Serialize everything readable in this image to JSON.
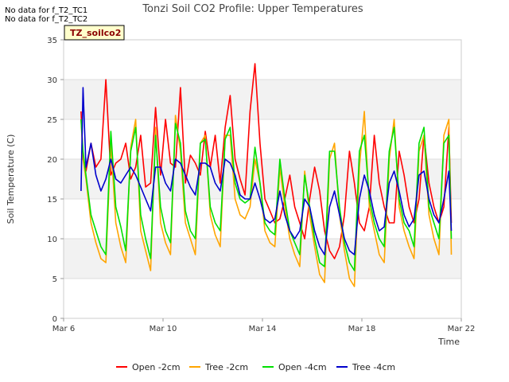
{
  "notices": [
    "No data for f_T2_TC1",
    "No data for f_T2_TC2"
  ],
  "chart_data": {
    "type": "line",
    "title": "Tonzi Soil CO2 Profile: Upper Temperatures",
    "xlabel": "Time",
    "ylabel": "Soil Temperature (C)",
    "tag": "TZ_soilco2",
    "xlim": [
      6,
      22
    ],
    "ylim": [
      0,
      35
    ],
    "x_ticks": [
      {
        "value": 6,
        "label": "Mar 6"
      },
      {
        "value": 10,
        "label": "Mar 10"
      },
      {
        "value": 14,
        "label": "Mar 14"
      },
      {
        "value": 18,
        "label": "Mar 18"
      },
      {
        "value": 22,
        "label": "Mar 22"
      }
    ],
    "y_ticks": [
      0,
      5,
      10,
      15,
      20,
      25,
      30,
      35
    ],
    "grid": true,
    "legend_position": "bottom",
    "series": [
      {
        "name": "Open -2cm",
        "color": "#ff0000",
        "x": [
          6.7,
          6.78,
          6.9,
          7.1,
          7.3,
          7.5,
          7.7,
          7.9,
          8.1,
          8.3,
          8.5,
          8.7,
          8.9,
          9.1,
          9.3,
          9.5,
          9.7,
          9.9,
          10.1,
          10.3,
          10.5,
          10.7,
          10.9,
          11.1,
          11.3,
          11.5,
          11.7,
          11.9,
          12.1,
          12.3,
          12.5,
          12.7,
          12.9,
          13.1,
          13.3,
          13.5,
          13.7,
          13.9,
          14.1,
          14.3,
          14.5,
          14.7,
          14.9,
          15.1,
          15.3,
          15.5,
          15.7,
          15.9,
          16.1,
          16.3,
          16.5,
          16.7,
          16.9,
          17.1,
          17.3,
          17.5,
          17.7,
          17.9,
          18.1,
          18.3,
          18.5,
          18.7,
          18.9,
          19.1,
          19.3,
          19.5,
          19.7,
          19.9,
          20.1,
          20.3,
          20.5,
          20.7,
          20.9,
          21.1,
          21.3,
          21.5,
          21.6
        ],
        "y": [
          26,
          20,
          18.5,
          22,
          19,
          20,
          30,
          18,
          19.5,
          20,
          22,
          17.5,
          19,
          23,
          16.5,
          17,
          26.5,
          18,
          25,
          19.5,
          19,
          29,
          17,
          20.5,
          19.5,
          18,
          23.5,
          19,
          23,
          17,
          24,
          28,
          20,
          17.5,
          15.5,
          26,
          32,
          22,
          15,
          13.5,
          12,
          12.5,
          15,
          18,
          14,
          12,
          10,
          15,
          19,
          16,
          11,
          8.5,
          7.5,
          9,
          13,
          21,
          17,
          12,
          11,
          14,
          23,
          17,
          14,
          12,
          12,
          21,
          18,
          14,
          12,
          15,
          23,
          17,
          14,
          12,
          14,
          24,
          12
        ]
      },
      {
        "name": "Tree -2cm",
        "color": "#ffa500",
        "x": [
          6.7,
          6.78,
          6.9,
          7.1,
          7.3,
          7.5,
          7.7,
          7.9,
          8.1,
          8.3,
          8.5,
          8.7,
          8.9,
          9.1,
          9.3,
          9.5,
          9.7,
          9.9,
          10.1,
          10.3,
          10.5,
          10.7,
          10.9,
          11.1,
          11.3,
          11.5,
          11.7,
          11.9,
          12.1,
          12.3,
          12.5,
          12.7,
          12.9,
          13.1,
          13.3,
          13.5,
          13.7,
          13.9,
          14.1,
          14.3,
          14.5,
          14.7,
          14.9,
          15.1,
          15.3,
          15.5,
          15.7,
          15.9,
          16.1,
          16.3,
          16.5,
          16.7,
          16.9,
          17.1,
          17.3,
          17.5,
          17.7,
          17.9,
          18.1,
          18.3,
          18.5,
          18.7,
          18.9,
          19.1,
          19.3,
          19.5,
          19.7,
          19.9,
          20.1,
          20.3,
          20.5,
          20.7,
          20.9,
          21.1,
          21.3,
          21.5,
          21.6
        ],
        "y": [
          25,
          20,
          17.5,
          12,
          9.5,
          7.5,
          7,
          22,
          12,
          9,
          7,
          21.5,
          25,
          11,
          8.5,
          6,
          24,
          12,
          9.5,
          8,
          25.5,
          21,
          12,
          10,
          8,
          22,
          23,
          13,
          10.5,
          9,
          23,
          23,
          15,
          13,
          12.5,
          14,
          20,
          17,
          11,
          9.5,
          9,
          19,
          14,
          10,
          8,
          6.5,
          18.5,
          13,
          9,
          5.5,
          4.5,
          20,
          22,
          13,
          8.5,
          5,
          4,
          19,
          26,
          14,
          11,
          8,
          7,
          20,
          25,
          14,
          11,
          9,
          7.5,
          21,
          23,
          13,
          10,
          8,
          23,
          25,
          8
        ]
      },
      {
        "name": "Open -4cm",
        "color": "#00e000",
        "x": [
          6.7,
          6.78,
          6.9,
          7.1,
          7.3,
          7.5,
          7.7,
          7.9,
          8.1,
          8.3,
          8.5,
          8.7,
          8.9,
          9.1,
          9.3,
          9.5,
          9.7,
          9.9,
          10.1,
          10.3,
          10.5,
          10.7,
          10.9,
          11.1,
          11.3,
          11.5,
          11.7,
          11.9,
          12.1,
          12.3,
          12.5,
          12.7,
          12.9,
          13.1,
          13.3,
          13.5,
          13.7,
          13.9,
          14.1,
          14.3,
          14.5,
          14.7,
          14.9,
          15.1,
          15.3,
          15.5,
          15.7,
          15.9,
          16.1,
          16.3,
          16.5,
          16.7,
          16.9,
          17.1,
          17.3,
          17.5,
          17.7,
          17.9,
          18.1,
          18.3,
          18.5,
          18.7,
          18.9,
          19.1,
          19.3,
          19.5,
          19.7,
          19.9,
          20.1,
          20.3,
          20.5,
          20.7,
          20.9,
          21.1,
          21.3,
          21.5,
          21.6
        ],
        "y": [
          25,
          21,
          18,
          13,
          11,
          9,
          8,
          23.5,
          14,
          11.5,
          8.5,
          21,
          24,
          13,
          10,
          7.5,
          23,
          14,
          11,
          9.5,
          24.5,
          22,
          13.5,
          11,
          10,
          22,
          22.5,
          14,
          12,
          11,
          22.5,
          24,
          17,
          15,
          14.5,
          15,
          21.5,
          17,
          12,
          11,
          10.5,
          20,
          15,
          11,
          9.5,
          8,
          18,
          14,
          10,
          7,
          6.5,
          21,
          21,
          14,
          9.5,
          7,
          6,
          21,
          23,
          15,
          12,
          10,
          9,
          21,
          24,
          15,
          12,
          11,
          9,
          22,
          24,
          14,
          12,
          10,
          22,
          23,
          10
        ]
      },
      {
        "name": "Tree -4cm",
        "color": "#0000cc",
        "x": [
          6.7,
          6.78,
          6.9,
          7.1,
          7.3,
          7.5,
          7.7,
          7.9,
          8.1,
          8.3,
          8.5,
          8.7,
          8.9,
          9.1,
          9.3,
          9.5,
          9.7,
          9.9,
          10.1,
          10.3,
          10.5,
          10.7,
          10.9,
          11.1,
          11.3,
          11.5,
          11.7,
          11.9,
          12.1,
          12.3,
          12.5,
          12.7,
          12.9,
          13.1,
          13.3,
          13.5,
          13.7,
          13.9,
          14.1,
          14.3,
          14.5,
          14.7,
          14.9,
          15.1,
          15.3,
          15.5,
          15.7,
          15.9,
          16.1,
          16.3,
          16.5,
          16.7,
          16.9,
          17.1,
          17.3,
          17.5,
          17.7,
          17.9,
          18.1,
          18.3,
          18.5,
          18.7,
          18.9,
          19.1,
          19.3,
          19.5,
          19.7,
          19.9,
          20.1,
          20.3,
          20.5,
          20.7,
          20.9,
          21.1,
          21.3,
          21.5,
          21.6
        ],
        "y": [
          16,
          29,
          19,
          22,
          18,
          16,
          17.5,
          20,
          17.5,
          17,
          18,
          19,
          18,
          16.5,
          15,
          13.5,
          19,
          19,
          17,
          16,
          20,
          19.5,
          18,
          16.5,
          15.5,
          19.5,
          19.5,
          19,
          17,
          16,
          20,
          19.5,
          18,
          15.5,
          15,
          15,
          17,
          15,
          12.5,
          12,
          12.5,
          16,
          13,
          11,
          10,
          11,
          15,
          14,
          11,
          9,
          8,
          14,
          16,
          13,
          10,
          8.5,
          8,
          15,
          18,
          16,
          13,
          11,
          11.5,
          17,
          18.5,
          16,
          13,
          11.5,
          12.5,
          18,
          18.5,
          15,
          13,
          12,
          15,
          18.5,
          11
        ]
      }
    ]
  }
}
